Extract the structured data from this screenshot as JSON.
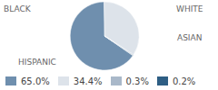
{
  "chart_data": {
    "type": "pie",
    "categories": [
      "HISPANIC",
      "WHITE",
      "ASIAN",
      "BLACK"
    ],
    "values": [
      65.0,
      34.4,
      0.3,
      0.2
    ],
    "value_labels": [
      "65.0%",
      "34.4%",
      "0.3%",
      "0.2%"
    ],
    "colors": [
      "#6f8fae",
      "#dde3ea",
      "#a9b8c9",
      "#2e5e84"
    ],
    "legend": "bottom"
  }
}
